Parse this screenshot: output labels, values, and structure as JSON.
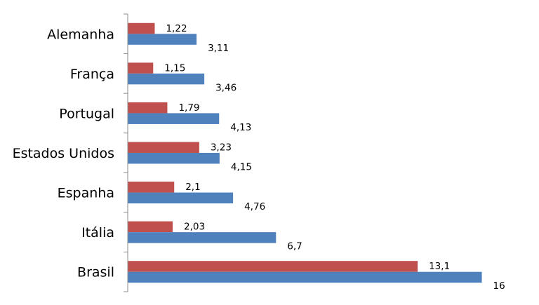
{
  "chart_data": {
    "type": "bar",
    "orientation": "horizontal",
    "categories": [
      "Alemanha",
      "França",
      "Portugal",
      "Estados Unidos",
      "Espanha",
      "Itália",
      "Brasil"
    ],
    "series": [
      {
        "color": "#C0504D",
        "values": [
          1.22,
          1.15,
          1.79,
          3.23,
          2.1,
          2.03,
          13.1
        ],
        "labels": [
          "1,22",
          "1,15",
          "1,79",
          "3,23",
          "2,1",
          "2,03",
          "13,1"
        ]
      },
      {
        "color": "#4F81BD",
        "values": [
          3.11,
          3.46,
          4.13,
          4.15,
          4.76,
          6.7,
          16
        ],
        "labels": [
          "3,11",
          "3,46",
          "4,13",
          "4,15",
          "4,76",
          "6,7",
          "16"
        ]
      }
    ],
    "xlim": [
      0,
      17.6
    ],
    "grid": false,
    "legend": "none"
  }
}
